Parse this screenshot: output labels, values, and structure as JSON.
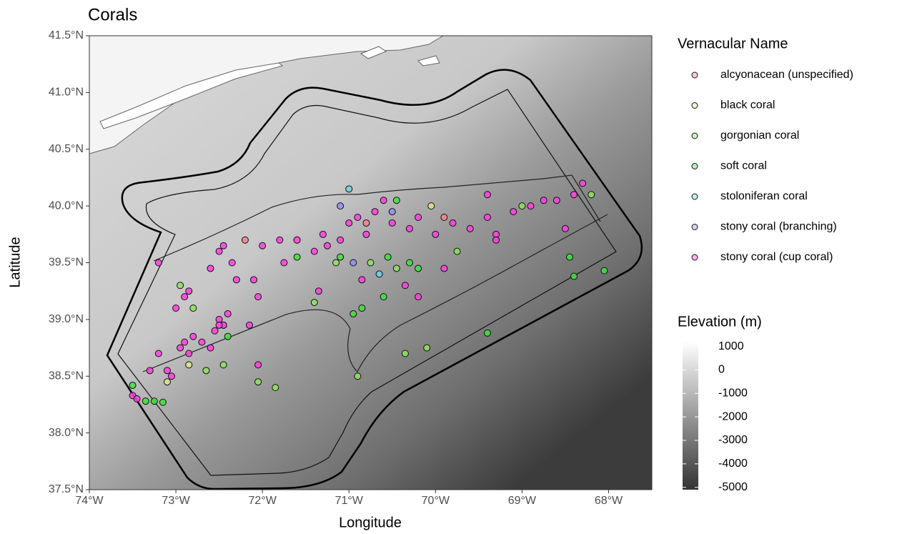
{
  "chart_data": {
    "type": "scatter",
    "title": "Corals",
    "x_label": "Longitude",
    "y_label": "Latitude",
    "xlim": [
      -74,
      -67.5
    ],
    "ylim": [
      37.5,
      41.5
    ],
    "xticks": [
      {
        "value": -74,
        "label": "74°W"
      },
      {
        "value": -73,
        "label": "73°W"
      },
      {
        "value": -72,
        "label": "72°W"
      },
      {
        "value": -71,
        "label": "71°W"
      },
      {
        "value": -70,
        "label": "70°W"
      },
      {
        "value": -69,
        "label": "69°W"
      },
      {
        "value": -68,
        "label": "68°W"
      }
    ],
    "yticks": [
      {
        "value": 37.5,
        "label": "37.5°N"
      },
      {
        "value": 38.0,
        "label": "38.0°N"
      },
      {
        "value": 38.5,
        "label": "38.5°N"
      },
      {
        "value": 39.0,
        "label": "39.0°N"
      },
      {
        "value": 39.5,
        "label": "39.5°N"
      },
      {
        "value": 40.0,
        "label": "40.0°N"
      },
      {
        "value": 40.5,
        "label": "40.5°N"
      },
      {
        "value": 41.0,
        "label": "41.0°N"
      },
      {
        "value": 41.5,
        "label": "41.5°N"
      }
    ],
    "legend_title": "Vernacular Name",
    "legend_position": "right",
    "series": [
      {
        "name": "alcyonacean (unspecified)",
        "color": "#ff7f8f",
        "x": [
          -72.2,
          -70.8,
          -69.9
        ],
        "values": [
          39.7,
          39.85,
          39.9
        ]
      },
      {
        "name": "black coral",
        "color": "#e0e08a",
        "x": [
          -73.1,
          -72.85,
          -70.05,
          -71.6
        ],
        "values": [
          38.45,
          38.6,
          40.0,
          39.7
        ]
      },
      {
        "name": "gorgonian coral",
        "color": "#8fe060",
        "x": [
          -72.8,
          -72.65,
          -72.45,
          -72.05,
          -71.85,
          -71.4,
          -71.15,
          -70.9,
          -70.75,
          -70.45,
          -70.35,
          -70.1,
          -69.75,
          -69.0,
          -68.2,
          -72.95
        ],
        "values": [
          39.1,
          38.55,
          38.6,
          38.45,
          38.4,
          39.15,
          39.5,
          38.5,
          39.5,
          39.45,
          38.7,
          38.75,
          39.6,
          40.0,
          40.1,
          39.3
        ]
      },
      {
        "name": "soft coral",
        "color": "#40e040",
        "x": [
          -73.5,
          -73.35,
          -73.15,
          -73.25,
          -72.4,
          -71.1,
          -70.85,
          -70.95,
          -70.55,
          -70.3,
          -70.2,
          -69.4,
          -68.45,
          -68.4,
          -68.05,
          -70.6,
          -71.6,
          -70.45
        ],
        "values": [
          38.42,
          38.28,
          38.27,
          38.28,
          38.85,
          39.55,
          39.1,
          39.05,
          39.55,
          39.5,
          39.45,
          38.88,
          39.55,
          39.38,
          39.43,
          39.2,
          39.55,
          40.05
        ]
      },
      {
        "name": "stoloniferan coral",
        "color": "#70d0e0",
        "x": [
          -72.45,
          -71.0,
          -70.65
        ],
        "values": [
          38.95,
          40.15,
          39.4
        ]
      },
      {
        "name": "stony coral (branching)",
        "color": "#9090f0",
        "x": [
          -71.1,
          -70.95,
          -70.5
        ],
        "values": [
          40.0,
          39.5,
          39.95
        ]
      },
      {
        "name": "stony coral (cup coral)",
        "color": "#ff40e0",
        "x": [
          -73.5,
          -73.45,
          -73.3,
          -73.2,
          -73.1,
          -73.05,
          -72.95,
          -72.9,
          -72.85,
          -72.8,
          -72.7,
          -72.6,
          -72.55,
          -72.45,
          -72.4,
          -72.5,
          -72.9,
          -72.85,
          -72.6,
          -72.5,
          -72.45,
          -72.35,
          -72.3,
          -72.1,
          -72.05,
          -72.0,
          -71.8,
          -71.75,
          -71.6,
          -71.4,
          -71.3,
          -71.25,
          -71.1,
          -71.0,
          -70.9,
          -70.8,
          -70.7,
          -70.6,
          -70.5,
          -70.3,
          -70.2,
          -70.0,
          -69.8,
          -69.6,
          -69.4,
          -69.3,
          -69.1,
          -68.9,
          -68.75,
          -68.6,
          -68.4,
          -68.3,
          -69.3,
          -69.9,
          -70.35,
          -70.85,
          -71.35,
          -72.05,
          -72.5,
          -73.2,
          -73.0,
          -69.4,
          -68.5,
          -72.15,
          -70.2
        ],
        "values": [
          38.33,
          38.3,
          38.55,
          38.7,
          38.55,
          38.5,
          38.75,
          38.8,
          38.7,
          38.85,
          38.8,
          38.75,
          38.9,
          38.95,
          39.05,
          39.0,
          39.2,
          39.25,
          39.45,
          39.6,
          39.65,
          39.5,
          39.35,
          39.35,
          39.2,
          39.65,
          39.7,
          39.5,
          39.7,
          39.6,
          39.75,
          39.65,
          39.7,
          39.85,
          39.9,
          39.75,
          39.95,
          40.05,
          39.85,
          39.8,
          39.9,
          39.75,
          39.85,
          39.8,
          39.9,
          39.75,
          39.95,
          40.0,
          40.05,
          40.05,
          40.1,
          40.2,
          39.7,
          39.45,
          39.3,
          39.35,
          39.25,
          38.6,
          38.95,
          39.5,
          39.1,
          40.1,
          39.8,
          38.95,
          39.2
        ]
      }
    ],
    "colorbar": {
      "title": "Elevation (m)",
      "lim": [
        -5100,
        1200
      ],
      "ticks": [
        1000,
        0,
        -1000,
        -2000,
        -3000,
        -4000,
        -5000
      ]
    }
  }
}
